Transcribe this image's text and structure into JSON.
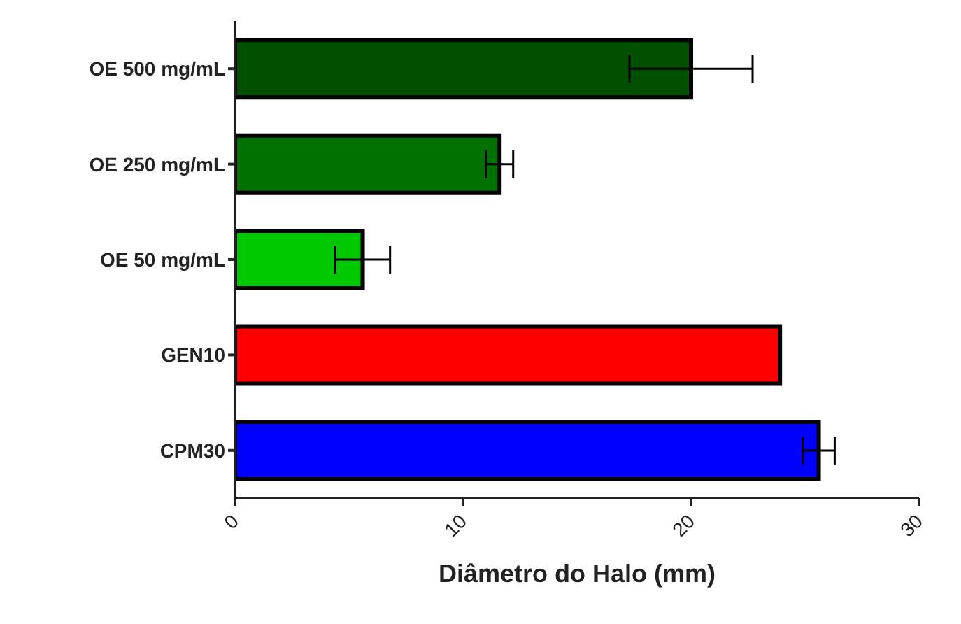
{
  "chart_data": {
    "type": "bar",
    "orientation": "horizontal",
    "xlabel": "Diâmetro do Halo (mm)",
    "categories": [
      "OE 500 mg/mL",
      "OE 250 mg/mL",
      "OE 50 mg/mL",
      "GEN10",
      "CPM30"
    ],
    "values": [
      20.0,
      11.6,
      5.6,
      23.9,
      25.6
    ],
    "errors": [
      2.7,
      0.6,
      1.2,
      null,
      0.7
    ],
    "colors": [
      "#005000",
      "#007000",
      "#00c800",
      "#ff0000",
      "#0000ff"
    ],
    "xlim": [
      0,
      30
    ],
    "xticks": [
      0,
      10,
      20,
      30
    ],
    "grid": false,
    "legend": false
  }
}
